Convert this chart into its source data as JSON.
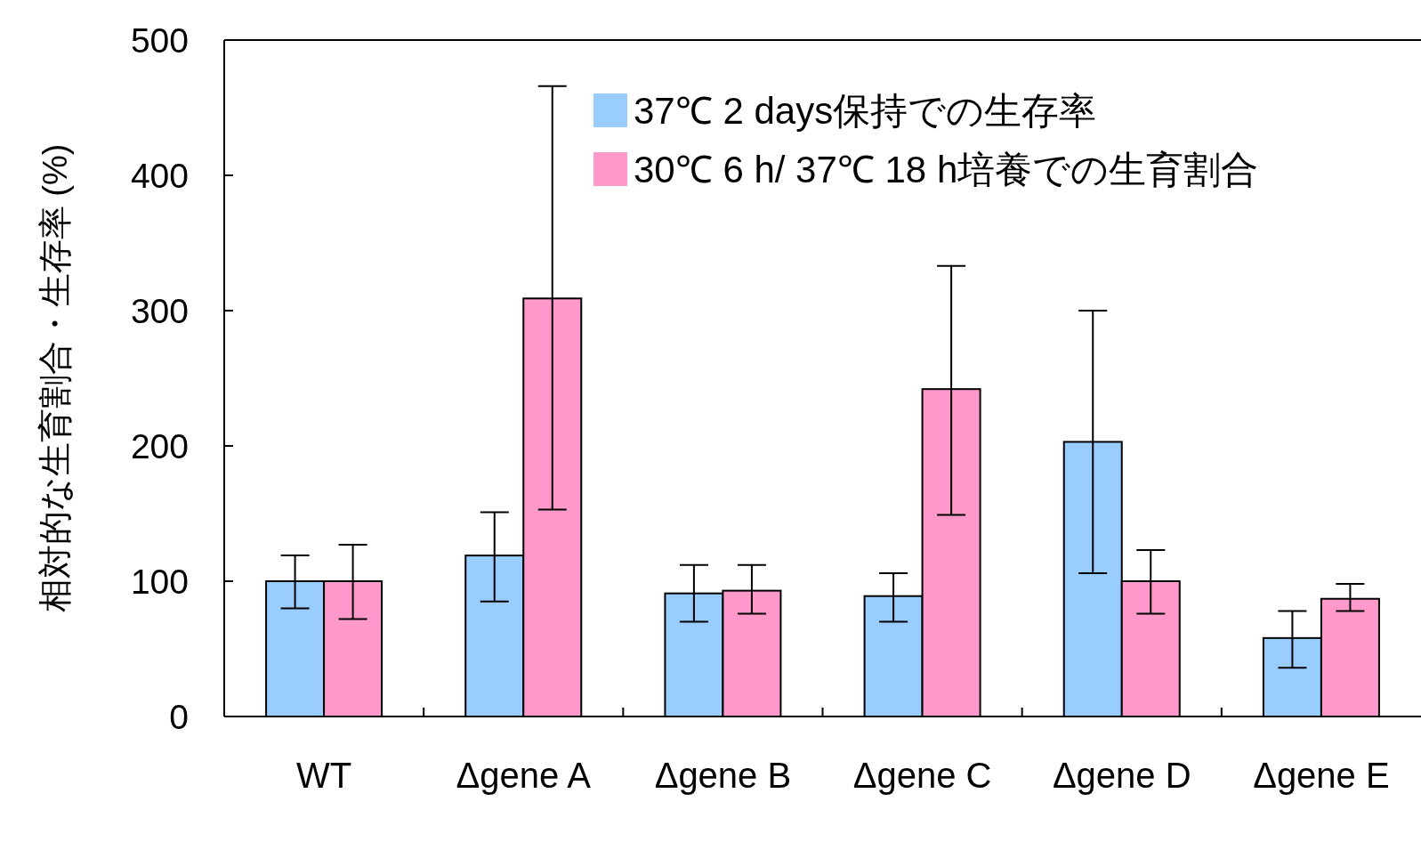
{
  "chart_data": {
    "type": "bar",
    "ylabel": "相対的な生育割合・生存率 (%)",
    "categories": [
      "WT",
      "Δgene A",
      "Δgene B",
      "Δgene C",
      "Δgene D",
      "Δgene E"
    ],
    "ylim": [
      0,
      500
    ],
    "yticks": [
      0,
      100,
      200,
      300,
      400,
      500
    ],
    "legend": "top right",
    "grid": false,
    "series": [
      {
        "name": "37℃ 2 days保持での生存率",
        "color": "#99ccff",
        "values": [
          100,
          119,
          91,
          89,
          203,
          58
        ],
        "errors": [
          [
            80,
            119
          ],
          [
            85,
            151
          ],
          [
            70,
            112
          ],
          [
            70,
            106
          ],
          [
            106,
            300
          ],
          [
            36,
            78
          ]
        ]
      },
      {
        "name": "30℃ 6 h/ 37℃ 18 h培養での生育割合",
        "color": "#ff99cc",
        "values": [
          100,
          309,
          93,
          242,
          100,
          87
        ],
        "errors": [
          [
            72,
            127
          ],
          [
            153,
            466
          ],
          [
            76,
            112
          ],
          [
            149,
            333
          ],
          [
            76,
            123
          ],
          [
            78,
            98
          ]
        ]
      }
    ]
  }
}
